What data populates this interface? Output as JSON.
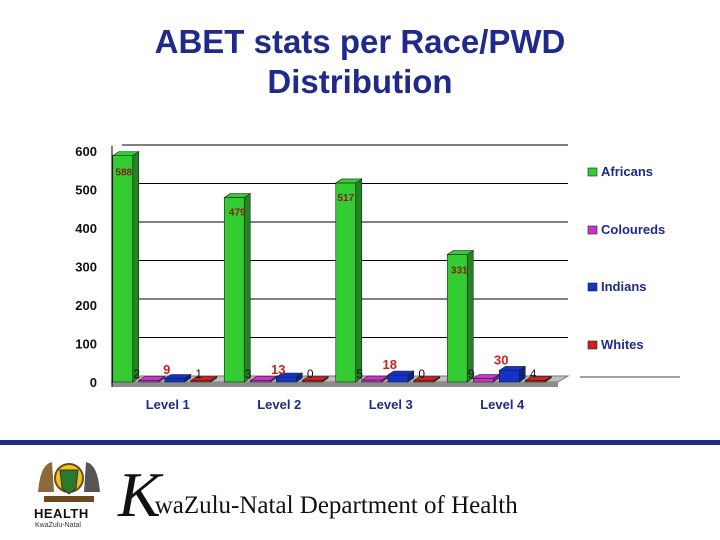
{
  "title_line1": "ABET stats per Race/PWD",
  "title_line2": "Distribution",
  "chart_data": {
    "type": "bar",
    "title": "ABET stats per Race/PWD Distribution",
    "categories": [
      "Level 1",
      "Level 2",
      "Level 3",
      "Level 4"
    ],
    "series": [
      {
        "name": "Africans",
        "values": [
          588,
          479,
          517,
          331
        ],
        "color": "#33cc33"
      },
      {
        "name": "Coloureds",
        "values": [
          2,
          3,
          5,
          9
        ],
        "color": "#cc33cc"
      },
      {
        "name": "Indians",
        "values": [
          9,
          13,
          18,
          30
        ],
        "color": "#1133cc"
      },
      {
        "name": "Whites",
        "values": [
          1,
          0,
          0,
          4
        ],
        "color": "#cc2222"
      }
    ],
    "yticks": [
      0,
      100,
      200,
      300,
      400,
      500,
      600
    ],
    "ylim": [
      0,
      600
    ],
    "xlabel": "",
    "ylabel": "",
    "legend_position": "right",
    "label_colors": {
      "default": "#111111",
      "Indians": "#cc2222",
      "Africans": "#8b1a1a"
    }
  },
  "footer": {
    "logo_text": "HEALTH",
    "logo_subtext": "KwaZulu-Natal",
    "dept_initial": "K",
    "dept_rest": "waZulu-Natal Department of Health"
  },
  "colors": {
    "title": "#1f2a8a",
    "axis_label": "#1f2a8a",
    "divider": "#1f2a8a"
  }
}
